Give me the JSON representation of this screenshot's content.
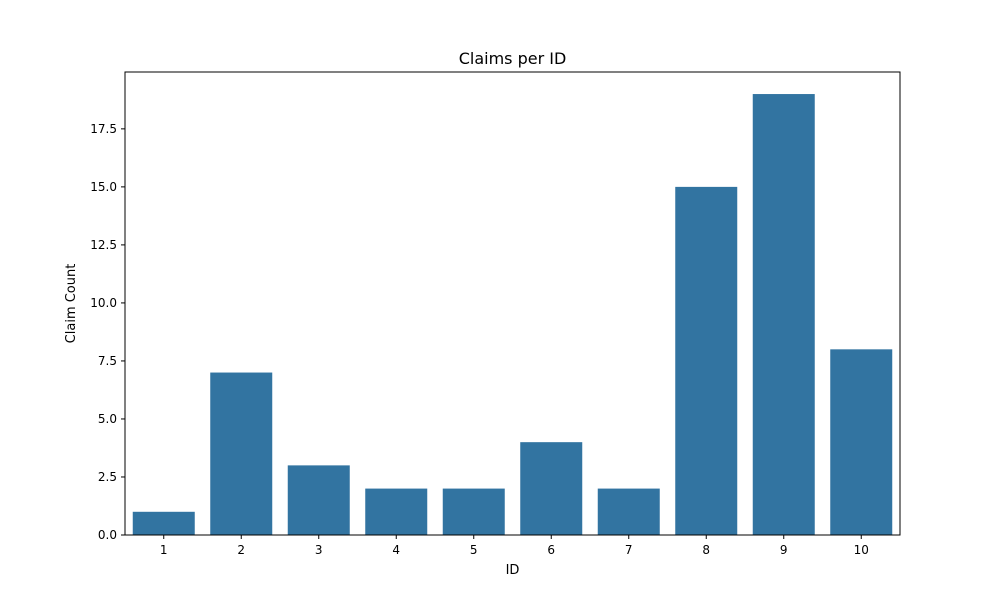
{
  "chart_data": {
    "type": "bar",
    "title": "Claims per ID",
    "xlabel": "ID",
    "ylabel": "Claim Count",
    "categories": [
      "1",
      "2",
      "3",
      "4",
      "5",
      "6",
      "7",
      "8",
      "9",
      "10"
    ],
    "values": [
      1,
      7,
      3,
      2,
      2,
      4,
      2,
      15,
      19,
      8
    ],
    "ylim": [
      0,
      19.95
    ],
    "yticks": [
      "0.0",
      "2.5",
      "5.0",
      "7.5",
      "10.0",
      "12.5",
      "15.0",
      "17.5"
    ],
    "bar_color": "#3274a1",
    "grid": false,
    "legend": "none"
  }
}
